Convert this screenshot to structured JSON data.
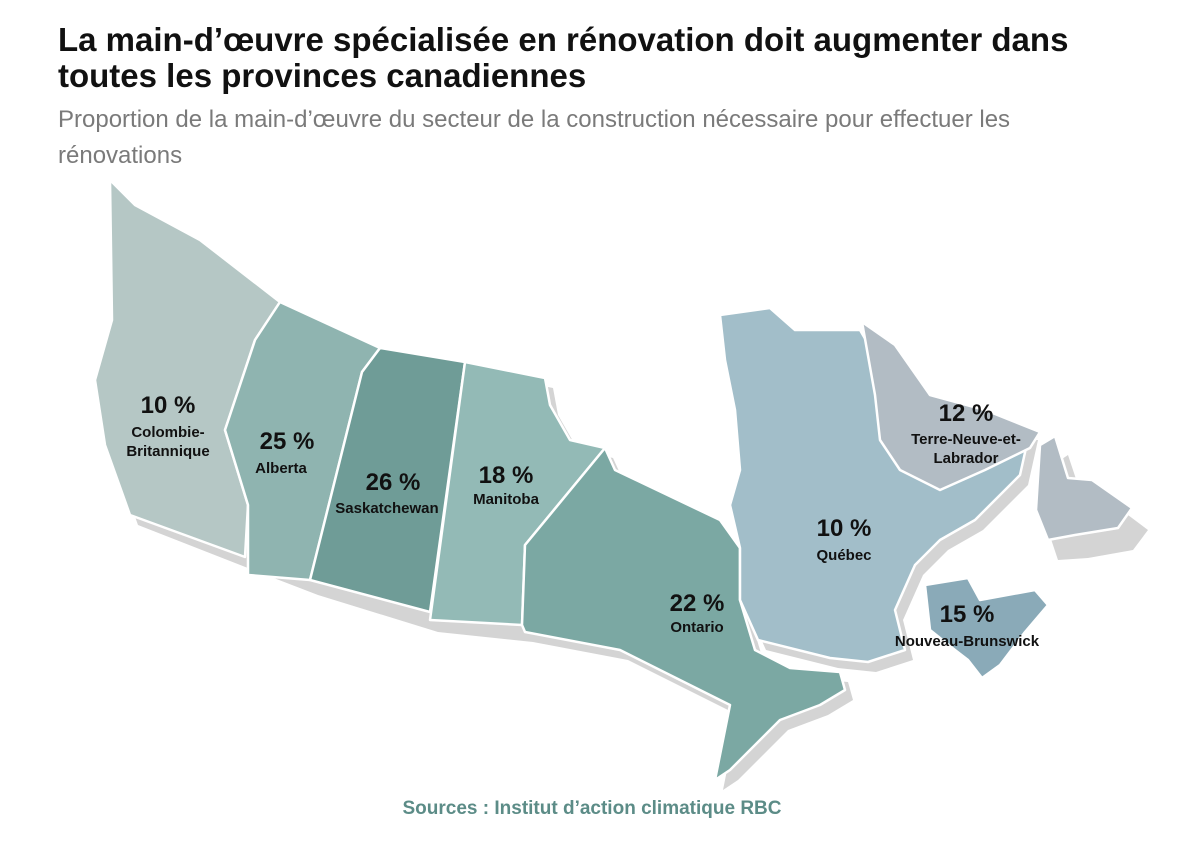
{
  "title": "La main-d’œuvre spécialisée en rénovation doit augmenter dans toutes les provinces canadiennes",
  "subtitle": "Proportion de la main-d’œuvre du secteur de la construction nécessaire pour effectuer les rénovations",
  "source": "Sources : Institut d’action climatique RBC",
  "provinces": [
    {
      "name": "Colombie-Britannique",
      "name_lines": [
        "Colombie-",
        "Britannique"
      ],
      "value": 10,
      "label": "10 %",
      "color": "#b5c7c5"
    },
    {
      "name": "Alberta",
      "name_lines": [
        "Alberta"
      ],
      "value": 25,
      "label": "25 %",
      "color": "#8fb4b0"
    },
    {
      "name": "Saskatchewan",
      "name_lines": [
        "Saskatchewan"
      ],
      "value": 26,
      "label": "26 %",
      "color": "#6f9c97"
    },
    {
      "name": "Manitoba",
      "name_lines": [
        "Manitoba"
      ],
      "value": 18,
      "label": "18 %",
      "color": "#93bab6"
    },
    {
      "name": "Ontario",
      "name_lines": [
        "Ontario"
      ],
      "value": 22,
      "label": "22 %",
      "color": "#7ba8a3"
    },
    {
      "name": "Québec",
      "name_lines": [
        "Québec"
      ],
      "value": 10,
      "label": "10 %",
      "color": "#a2bec9"
    },
    {
      "name": "Terre-Neuve-et-Labrador",
      "name_lines": [
        "Terre-Neuve-et-",
        "Labrador"
      ],
      "value": 12,
      "label": "12 %",
      "color": "#b2bcc4"
    },
    {
      "name": "Nouveau-Brunswick",
      "name_lines": [
        "Nouveau-Brunswick"
      ],
      "value": 15,
      "label": "15 %",
      "color": "#8aaab8"
    }
  ]
}
